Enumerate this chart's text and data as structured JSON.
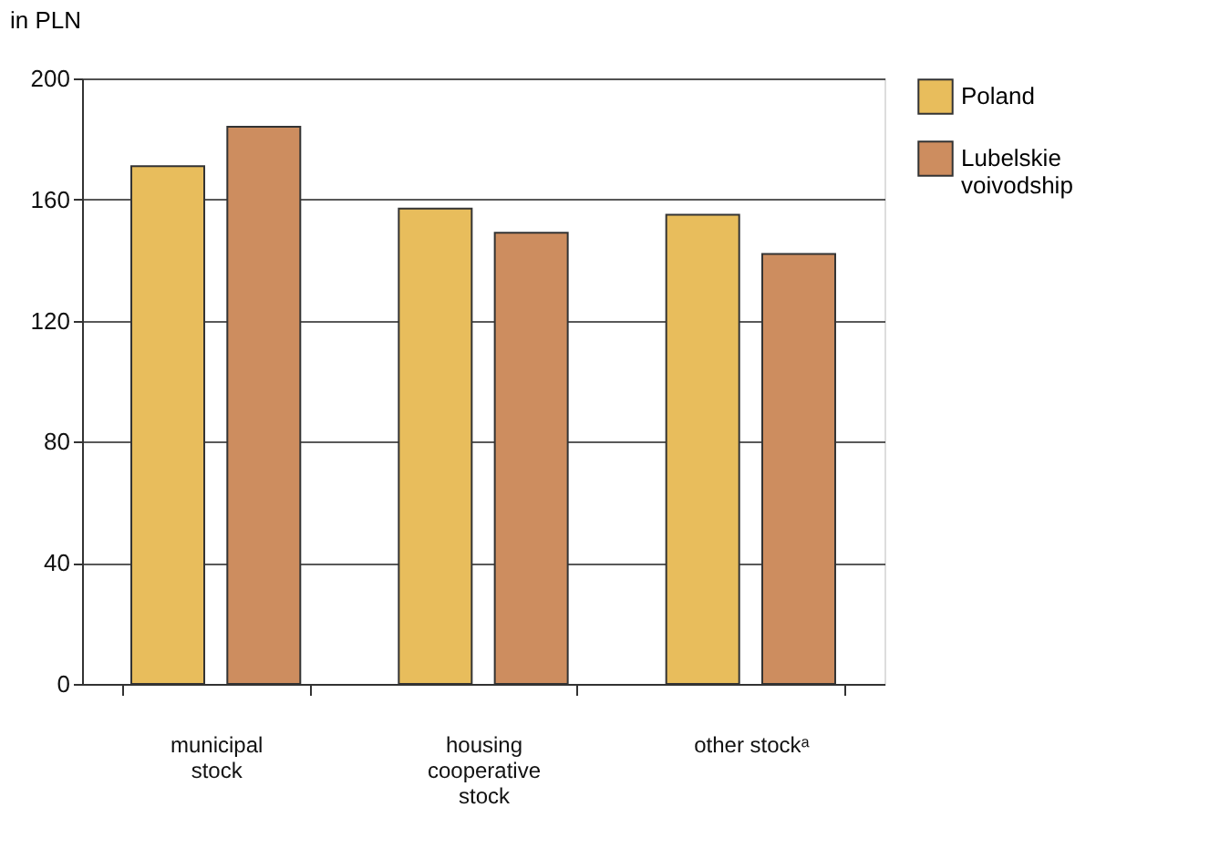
{
  "chart_data": {
    "type": "bar",
    "ylabel": "in PLN",
    "categories": [
      "municipal\nstock",
      "housing\ncooperative\nstock",
      "other stockᵃ"
    ],
    "series": [
      {
        "name": "Poland",
        "color": "#e8bd5c",
        "values": [
          171,
          157,
          155
        ]
      },
      {
        "name": "Lubelskie\nvoivodship",
        "color": "#cd8d5f",
        "values": [
          184,
          149,
          142
        ]
      }
    ],
    "ylim": [
      0,
      200
    ],
    "yticks": [
      0,
      40,
      80,
      120,
      160,
      200
    ],
    "grid": "y",
    "legend": "right"
  }
}
